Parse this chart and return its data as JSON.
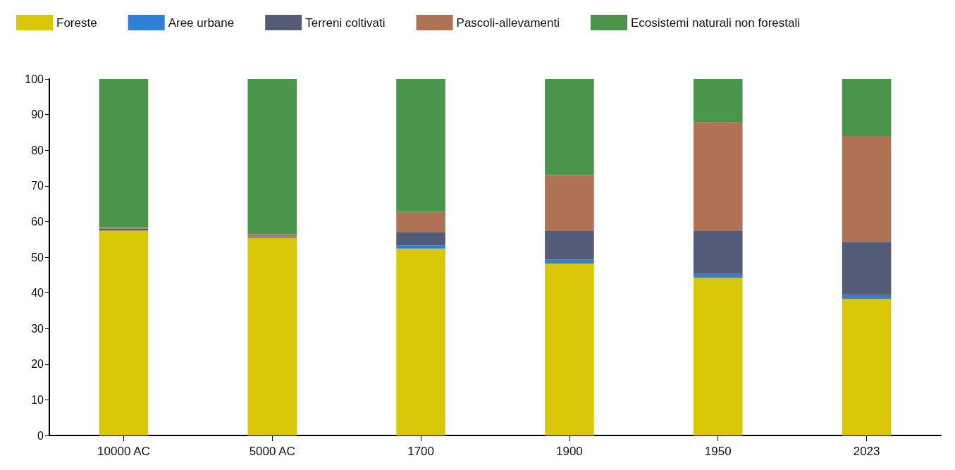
{
  "chart_data": {
    "type": "bar",
    "stacked": true,
    "categories": [
      "10000 AC",
      "5000 AC",
      "1700",
      "1900",
      "1950",
      "2023"
    ],
    "series": [
      {
        "name": "Foreste",
        "color": "#d9c709",
        "values": [
          57.5,
          55.5,
          52.4,
          48.2,
          44.2,
          38.3
        ]
      },
      {
        "name": "Aree urbane",
        "color": "#2e7fd6",
        "values": [
          0,
          0,
          0.9,
          1.1,
          1.1,
          1.1
        ]
      },
      {
        "name": "Terreni coltivati",
        "color": "#525b77",
        "values": [
          0.5,
          0.3,
          3.6,
          8.0,
          12.0,
          14.9
        ]
      },
      {
        "name": "Pascoli-allevamenti",
        "color": "#b07255",
        "values": [
          0.4,
          0.6,
          5.8,
          15.7,
          30.5,
          29.7
        ]
      },
      {
        "name": "Ecosistemi naturali non forestali",
        "color": "#4b944b",
        "values": [
          41.6,
          43.6,
          37.3,
          27.0,
          12.2,
          16.0
        ]
      }
    ],
    "legend": "top left",
    "grid": false,
    "ylim": [
      0,
      100
    ],
    "yticks": [
      0,
      10,
      20,
      30,
      40,
      50,
      60,
      70,
      80,
      90,
      100
    ]
  }
}
